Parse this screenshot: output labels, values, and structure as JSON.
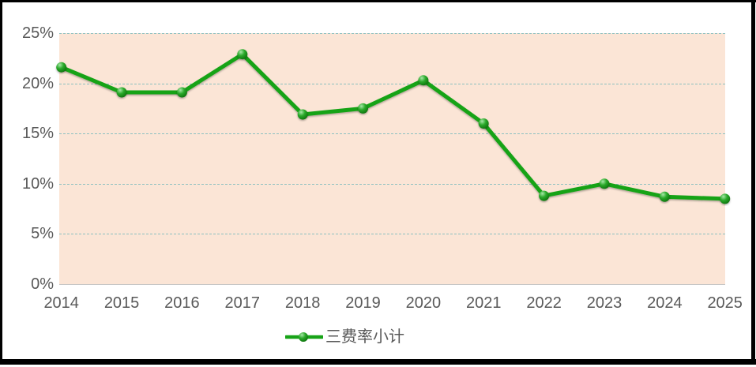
{
  "chart_data": {
    "type": "line",
    "title": "",
    "categories": [
      "2014",
      "2015",
      "2016",
      "2017",
      "2018",
      "2019",
      "2020",
      "2021",
      "2022",
      "2023",
      "2024",
      "2025"
    ],
    "series": [
      {
        "name": "三费率小计",
        "values": [
          21.6,
          19.1,
          19.1,
          22.9,
          16.9,
          17.5,
          20.3,
          16.0,
          8.8,
          10.0,
          8.7,
          8.5
        ]
      }
    ],
    "xlabel": "",
    "ylabel": "",
    "ylim": [
      0,
      25
    ],
    "ytick_step": 5,
    "ytick_suffix": "%",
    "ytick_labels": [
      "0%",
      "5%",
      "10%",
      "15%",
      "20%",
      "25%"
    ],
    "grid": true,
    "gridline_style": "dashed",
    "legend_position": "bottom-center"
  },
  "legend": {
    "items": [
      {
        "label": "三费率小计",
        "marker": "line-circle-icon"
      }
    ]
  },
  "colors": {
    "line": "#17A317",
    "marker_highlight": "#A8E7A8",
    "marker_mid": "#2BAA2B",
    "marker_dark": "#0A6E0A",
    "plot_background": "#FBE5D6",
    "gridline": "#8CC0C0",
    "axis_line": "#C6C6C6",
    "tick_text": "#595959",
    "border": "#000000",
    "background": "#FFFFFF"
  }
}
